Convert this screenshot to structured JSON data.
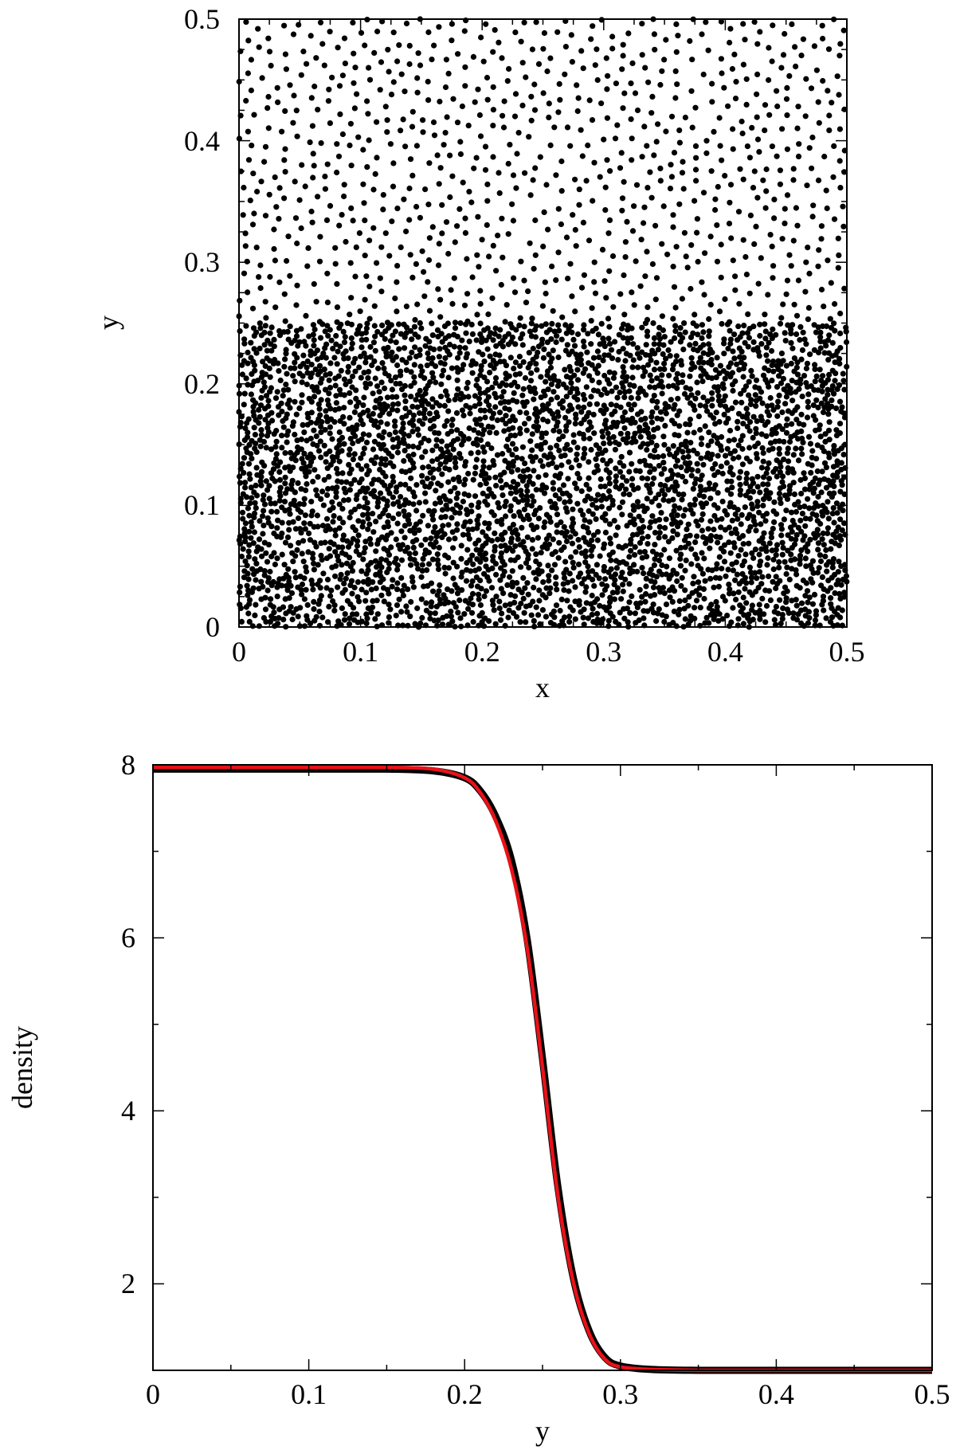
{
  "chart_data": [
    {
      "type": "scatter",
      "title": "",
      "xlabel": "x",
      "ylabel": "y",
      "xlim": [
        0,
        0.5
      ],
      "ylim": [
        0,
        0.5
      ],
      "x_ticks": [
        "0",
        "0.1",
        "0.2",
        "0.3",
        "0.4",
        "0.5"
      ],
      "y_ticks": [
        "0",
        "0.1",
        "0.2",
        "0.3",
        "0.4",
        "0.5"
      ],
      "grid": false,
      "marker_color": "#000000",
      "regions": [
        {
          "y_range": [
            0,
            0.25
          ],
          "relative_density": 8
        },
        {
          "y_range": [
            0.25,
            0.5
          ],
          "relative_density": 1
        }
      ]
    },
    {
      "type": "line",
      "title": "",
      "xlabel": "y",
      "ylabel": "density",
      "xlim": [
        0,
        0.5
      ],
      "ylim": [
        1,
        8
      ],
      "x_ticks": [
        "0",
        "0.1",
        "0.2",
        "0.3",
        "0.4",
        "0.5"
      ],
      "y_ticks": [
        "2",
        "4",
        "6",
        "8"
      ],
      "grid": false,
      "series": [
        {
          "color": "#000000",
          "x": [
            0,
            0.05,
            0.1,
            0.15,
            0.18,
            0.2,
            0.21,
            0.22,
            0.23,
            0.24,
            0.25,
            0.26,
            0.27,
            0.28,
            0.29,
            0.3,
            0.32,
            0.35,
            0.4,
            0.45,
            0.5
          ],
          "y": [
            7.95,
            7.95,
            7.95,
            7.95,
            7.93,
            7.85,
            7.7,
            7.4,
            6.9,
            6.0,
            4.6,
            3.1,
            2.05,
            1.45,
            1.15,
            1.05,
            1.01,
            1.0,
            1.0,
            1.0,
            1.0
          ]
        },
        {
          "color": "#e8121a",
          "x": [
            0,
            0.05,
            0.1,
            0.15,
            0.18,
            0.2,
            0.21,
            0.22,
            0.23,
            0.24,
            0.25,
            0.26,
            0.27,
            0.28,
            0.29,
            0.3,
            0.32,
            0.35,
            0.4,
            0.45,
            0.5
          ],
          "y": [
            7.97,
            7.97,
            7.97,
            7.97,
            7.95,
            7.85,
            7.68,
            7.35,
            6.8,
            5.9,
            4.5,
            3.0,
            2.0,
            1.42,
            1.13,
            1.04,
            1.01,
            1.0,
            1.0,
            1.0,
            1.0
          ]
        }
      ]
    }
  ]
}
